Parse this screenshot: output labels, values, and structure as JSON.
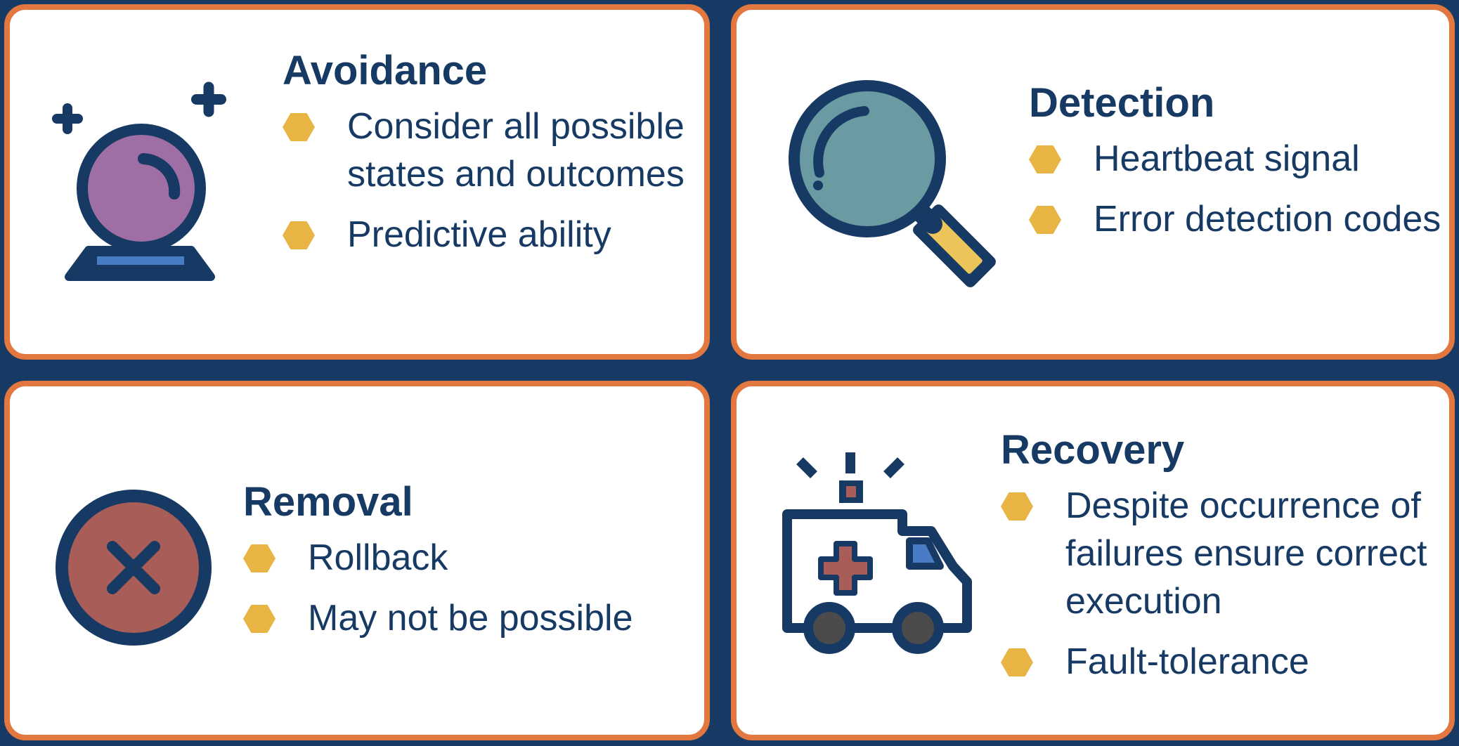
{
  "colors": {
    "background": "#163a63",
    "card_border": "#e2773f",
    "text": "#163a63",
    "bullet": "#e8b443"
  },
  "cards": [
    {
      "title": "Avoidance",
      "icon": "crystal-ball-icon",
      "bullets": [
        "Consider all possible states and outcomes",
        "Predictive ability"
      ]
    },
    {
      "title": "Detection",
      "icon": "magnifying-glass-icon",
      "bullets": [
        "Heartbeat signal",
        "Error detection codes"
      ]
    },
    {
      "title": "Removal",
      "icon": "close-circle-icon",
      "bullets": [
        "Rollback",
        "May not be possible"
      ]
    },
    {
      "title": "Recovery",
      "icon": "ambulance-icon",
      "bullets": [
        "Despite occurrence of failures ensure correct execution",
        "Fault-tolerance"
      ]
    }
  ]
}
